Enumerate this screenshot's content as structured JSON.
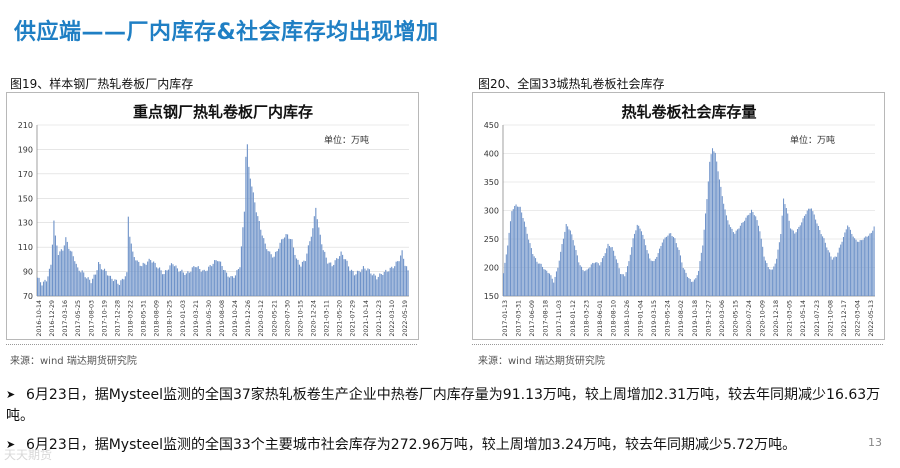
{
  "slide": {
    "title": "供应端——厂内库存&社会库存均出现增加",
    "page_number": "13"
  },
  "figures": [
    {
      "caption": "图19、样本钢厂热轧卷板厂内库存",
      "source": "来源：wind   瑞达期货研究院"
    },
    {
      "caption": "图20、全国33城热轧卷板社会库存",
      "source": "来源：wind   瑞达期货研究院"
    }
  ],
  "chart_data": [
    {
      "type": "bar",
      "title": "重点钢厂热轧卷板厂内库存",
      "unit_label": "单位：万吨",
      "color": "#6f93c9",
      "ylim": [
        70,
        210
      ],
      "yticks": [
        70,
        90,
        110,
        130,
        150,
        170,
        190,
        210
      ],
      "grid": true,
      "x_tick_labels": [
        "2016-10-14",
        "2016-12-29",
        "2017-03-16",
        "2017-05-25",
        "2017-08-03",
        "2017-10-19",
        "2017-12-28",
        "2018-03-22",
        "2018-05-31",
        "2018-08-09",
        "2018-10-25",
        "2019-01-03",
        "2019-03-21",
        "2019-05-30",
        "2019-08-08",
        "2019-10-24",
        "2019-12-26",
        "2020-03-12",
        "2020-05-21",
        "2020-07-30",
        "2020-10-15",
        "2020-12-24",
        "2021-03-11",
        "2021-05-20",
        "2021-07-29",
        "2021-10-14",
        "2021-12-23",
        "2022-03-10",
        "2022-05-19"
      ],
      "anchors": [
        [
          0,
          85
        ],
        [
          3,
          80
        ],
        [
          6,
          83
        ],
        [
          9,
          95
        ],
        [
          11,
          132
        ],
        [
          12,
          118
        ],
        [
          14,
          105
        ],
        [
          17,
          108
        ],
        [
          19,
          117
        ],
        [
          21,
          110
        ],
        [
          23,
          105
        ],
        [
          25,
          100
        ],
        [
          27,
          92
        ],
        [
          30,
          90
        ],
        [
          33,
          85
        ],
        [
          36,
          82
        ],
        [
          39,
          88
        ],
        [
          41,
          97
        ],
        [
          43,
          93
        ],
        [
          46,
          90
        ],
        [
          49,
          85
        ],
        [
          52,
          83
        ],
        [
          55,
          80
        ],
        [
          58,
          85
        ],
        [
          60,
          88
        ],
        [
          61,
          135
        ],
        [
          62,
          120
        ],
        [
          64,
          105
        ],
        [
          67,
          98
        ],
        [
          70,
          95
        ],
        [
          73,
          97
        ],
        [
          76,
          100
        ],
        [
          79,
          96
        ],
        [
          82,
          92
        ],
        [
          85,
          88
        ],
        [
          88,
          93
        ],
        [
          91,
          97
        ],
        [
          94,
          92
        ],
        [
          97,
          90
        ],
        [
          100,
          88
        ],
        [
          103,
          91
        ],
        [
          106,
          95
        ],
        [
          109,
          92
        ],
        [
          112,
          90
        ],
        [
          115,
          93
        ],
        [
          118,
          97
        ],
        [
          121,
          100
        ],
        [
          124,
          95
        ],
        [
          127,
          88
        ],
        [
          130,
          85
        ],
        [
          133,
          87
        ],
        [
          136,
          95
        ],
        [
          139,
          140
        ],
        [
          140,
          185
        ],
        [
          141,
          193
        ],
        [
          142,
          175
        ],
        [
          144,
          160
        ],
        [
          147,
          140
        ],
        [
          150,
          125
        ],
        [
          153,
          112
        ],
        [
          156,
          105
        ],
        [
          159,
          102
        ],
        [
          162,
          110
        ],
        [
          165,
          118
        ],
        [
          168,
          120
        ],
        [
          171,
          115
        ],
        [
          174,
          100
        ],
        [
          177,
          95
        ],
        [
          180,
          100
        ],
        [
          183,
          115
        ],
        [
          185,
          125
        ],
        [
          187,
          143
        ],
        [
          189,
          125
        ],
        [
          192,
          108
        ],
        [
          195,
          98
        ],
        [
          198,
          95
        ],
        [
          201,
          100
        ],
        [
          204,
          105
        ],
        [
          207,
          100
        ],
        [
          210,
          92
        ],
        [
          213,
          88
        ],
        [
          216,
          90
        ],
        [
          219,
          93
        ],
        [
          222,
          92
        ],
        [
          225,
          88
        ],
        [
          228,
          85
        ],
        [
          231,
          88
        ],
        [
          234,
          90
        ],
        [
          237,
          92
        ],
        [
          240,
          95
        ],
        [
          243,
          100
        ],
        [
          245,
          106
        ],
        [
          247,
          96
        ],
        [
          249,
          91
        ]
      ]
    },
    {
      "type": "bar",
      "title": "热轧卷板社会库存量",
      "unit_label": "单位：万吨",
      "color": "#6f93c9",
      "ylim": [
        150,
        450
      ],
      "yticks": [
        150,
        200,
        250,
        300,
        350,
        400,
        450
      ],
      "grid": true,
      "x_tick_labels": [
        "2017-01-13",
        "2017-03-31",
        "2017-06-09",
        "2017-08-18",
        "2017-11-03",
        "2018-01-12",
        "2018-03-23",
        "2018-06-01",
        "2018-08-10",
        "2018-10-26",
        "2019-01-04",
        "2019-03-15",
        "2019-05-24",
        "2019-08-02",
        "2019-10-18",
        "2019-12-27",
        "2020-03-06",
        "2020-05-15",
        "2020-07-24",
        "2020-10-09",
        "2020-12-18",
        "2021-03-05",
        "2021-05-14",
        "2021-07-23",
        "2021-10-08",
        "2021-12-17",
        "2022-03-04",
        "2022-05-13"
      ],
      "anchors": [
        [
          0,
          190
        ],
        [
          3,
          240
        ],
        [
          6,
          300
        ],
        [
          9,
          310
        ],
        [
          12,
          305
        ],
        [
          15,
          280
        ],
        [
          18,
          250
        ],
        [
          21,
          225
        ],
        [
          24,
          210
        ],
        [
          27,
          205
        ],
        [
          30,
          195
        ],
        [
          33,
          190
        ],
        [
          36,
          175
        ],
        [
          39,
          200
        ],
        [
          42,
          240
        ],
        [
          45,
          275
        ],
        [
          48,
          265
        ],
        [
          51,
          240
        ],
        [
          54,
          210
        ],
        [
          57,
          195
        ],
        [
          60,
          195
        ],
        [
          63,
          205
        ],
        [
          66,
          210
        ],
        [
          69,
          205
        ],
        [
          72,
          220
        ],
        [
          75,
          240
        ],
        [
          78,
          235
        ],
        [
          81,
          215
        ],
        [
          84,
          190
        ],
        [
          87,
          185
        ],
        [
          90,
          210
        ],
        [
          93,
          250
        ],
        [
          96,
          275
        ],
        [
          99,
          265
        ],
        [
          102,
          240
        ],
        [
          105,
          215
        ],
        [
          108,
          210
        ],
        [
          111,
          225
        ],
        [
          114,
          245
        ],
        [
          117,
          255
        ],
        [
          120,
          260
        ],
        [
          123,
          250
        ],
        [
          126,
          230
        ],
        [
          129,
          200
        ],
        [
          132,
          185
        ],
        [
          135,
          175
        ],
        [
          138,
          180
        ],
        [
          140,
          195
        ],
        [
          143,
          240
        ],
        [
          146,
          320
        ],
        [
          148,
          385
        ],
        [
          150,
          410
        ],
        [
          152,
          400
        ],
        [
          154,
          370
        ],
        [
          157,
          325
        ],
        [
          160,
          290
        ],
        [
          163,
          270
        ],
        [
          166,
          260
        ],
        [
          169,
          270
        ],
        [
          172,
          280
        ],
        [
          175,
          290
        ],
        [
          178,
          300
        ],
        [
          181,
          290
        ],
        [
          184,
          265
        ],
        [
          187,
          220
        ],
        [
          190,
          200
        ],
        [
          193,
          195
        ],
        [
          196,
          215
        ],
        [
          199,
          260
        ],
        [
          201,
          320
        ],
        [
          203,
          305
        ],
        [
          206,
          270
        ],
        [
          209,
          260
        ],
        [
          212,
          270
        ],
        [
          215,
          285
        ],
        [
          218,
          300
        ],
        [
          221,
          305
        ],
        [
          224,
          285
        ],
        [
          227,
          265
        ],
        [
          230,
          250
        ],
        [
          233,
          230
        ],
        [
          236,
          215
        ],
        [
          239,
          220
        ],
        [
          242,
          240
        ],
        [
          245,
          260
        ],
        [
          247,
          275
        ],
        [
          249,
          265
        ],
        [
          252,
          250
        ],
        [
          255,
          245
        ],
        [
          258,
          250
        ],
        [
          261,
          255
        ],
        [
          264,
          260
        ],
        [
          266,
          272
        ]
      ]
    }
  ],
  "bullets": [
    "6月23日，据Mysteel监测的全国37家热轧板卷生产企业中热卷厂内库存量为91.13万吨，较上周增加2.31万吨，较去年同期减少16.63万吨。",
    "6月23日，据Mysteel监测的全国33个主要城市社会库存为272.96万吨，较上周增加3.24万吨，较去年同期减少5.72万吨。"
  ],
  "watermark": "天天期货"
}
